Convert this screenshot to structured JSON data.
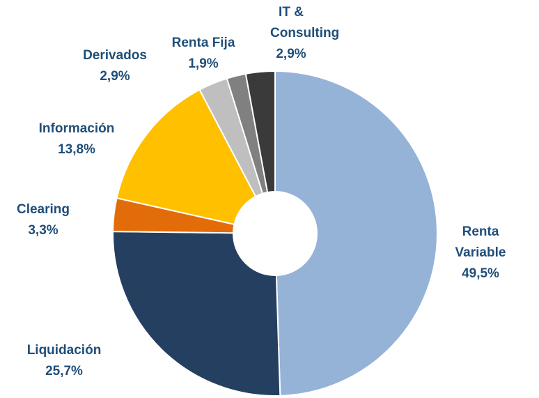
{
  "chart_data": {
    "type": "donut",
    "categories": [
      "Renta Variable",
      "Liquidación",
      "Clearing",
      "Información",
      "Derivados",
      "Renta Fija",
      "IT & Consulting"
    ],
    "values": [
      49.5,
      25.7,
      3.3,
      13.8,
      2.9,
      1.9,
      2.9
    ],
    "value_labels": [
      "49,5%",
      "25,7%",
      "3,3%",
      "13,8%",
      "2,9%",
      "1,9%",
      "2,9%"
    ],
    "colors": [
      "#95b3d7",
      "#243f60",
      "#e36c0a",
      "#ffc000",
      "#bfbfbf",
      "#808080",
      "#3a3a3a"
    ]
  }
}
